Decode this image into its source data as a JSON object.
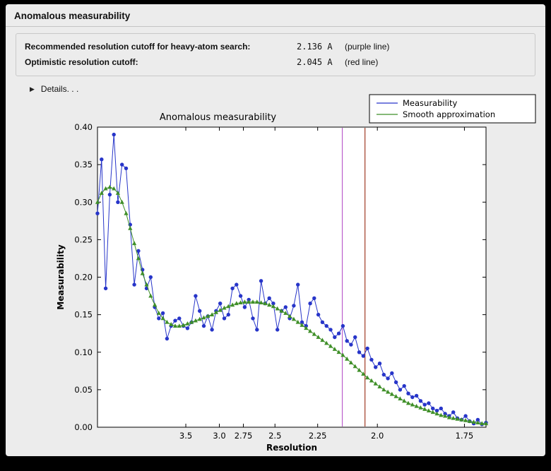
{
  "window": {
    "title": "Anomalous measurability"
  },
  "info": {
    "rows": [
      {
        "label": "Recommended resolution cutoff for heavy-atom search:",
        "value": "2.136 A",
        "note": "(purple line)"
      },
      {
        "label": "Optimistic resolution cutoff:",
        "value": "2.045 A",
        "note": "(red line)"
      }
    ]
  },
  "details": {
    "label": "Details. . .",
    "icon": "triangle-right"
  },
  "chart_data": {
    "type": "line",
    "title": "Anomalous measurability",
    "xlabel": "Resolution",
    "ylabel": "Measurability",
    "grid": false,
    "plot_bg": "#ffffff",
    "x_axis": {
      "scale": "reciprocal (1/d^2), resolution in Angstrom decreasing to the right",
      "range_s": [
        0.004,
        0.3455
      ],
      "ticks": [
        {
          "label": "3.5",
          "resolution": 3.5
        },
        {
          "label": "3.0",
          "resolution": 3.0
        },
        {
          "label": "2.75",
          "resolution": 2.75
        },
        {
          "label": "2.5",
          "resolution": 2.5
        },
        {
          "label": "2.25",
          "resolution": 2.25
        },
        {
          "label": "2.0",
          "resolution": 2.0
        },
        {
          "label": "1.75",
          "resolution": 1.75
        }
      ]
    },
    "y_axis": {
      "range": [
        0.0,
        0.4
      ],
      "ticks": [
        {
          "label": "0.00",
          "value": 0.0
        },
        {
          "label": "0.05",
          "value": 0.05
        },
        {
          "label": "0.10",
          "value": 0.1
        },
        {
          "label": "0.15",
          "value": 0.15
        },
        {
          "label": "0.20",
          "value": 0.2
        },
        {
          "label": "0.25",
          "value": 0.25
        },
        {
          "label": "0.30",
          "value": 0.3
        },
        {
          "label": "0.35",
          "value": 0.35
        },
        {
          "label": "0.40",
          "value": 0.4
        }
      ]
    },
    "vlines": [
      {
        "resolution": 2.136,
        "color": "#bb5ecc",
        "label": "purple line"
      },
      {
        "resolution": 2.045,
        "color": "#a03b25",
        "label": "red line"
      }
    ],
    "legend": {
      "position": "top-right"
    },
    "series": [
      {
        "name": "Measurability",
        "color": "#2735c9",
        "marker": "circle",
        "values": [
          0.285,
          0.357,
          0.185,
          0.31,
          0.39,
          0.3,
          0.35,
          0.345,
          0.27,
          0.19,
          0.235,
          0.21,
          0.185,
          0.2,
          0.16,
          0.145,
          0.152,
          0.118,
          0.135,
          0.142,
          0.145,
          0.135,
          0.132,
          0.14,
          0.175,
          0.155,
          0.135,
          0.148,
          0.13,
          0.155,
          0.165,
          0.145,
          0.15,
          0.185,
          0.19,
          0.175,
          0.16,
          0.17,
          0.145,
          0.13,
          0.195,
          0.165,
          0.172,
          0.165,
          0.13,
          0.155,
          0.16,
          0.145,
          0.162,
          0.19,
          0.14,
          0.135,
          0.165,
          0.172,
          0.15,
          0.14,
          0.135,
          0.13,
          0.12,
          0.125,
          0.135,
          0.115,
          0.11,
          0.12,
          0.1,
          0.095,
          0.105,
          0.09,
          0.08,
          0.085,
          0.07,
          0.065,
          0.072,
          0.06,
          0.05,
          0.055,
          0.045,
          0.04,
          0.042,
          0.035,
          0.03,
          0.032,
          0.025,
          0.022,
          0.025,
          0.018,
          0.015,
          0.02,
          0.012,
          0.01,
          0.015,
          0.008,
          0.005,
          0.01,
          0.004,
          0.006
        ]
      },
      {
        "name": "Smooth approximation",
        "color": "#3f8f28",
        "marker": "triangle",
        "values": [
          0.3,
          0.312,
          0.318,
          0.32,
          0.318,
          0.312,
          0.3,
          0.285,
          0.265,
          0.245,
          0.225,
          0.205,
          0.19,
          0.175,
          0.163,
          0.152,
          0.145,
          0.14,
          0.137,
          0.135,
          0.135,
          0.136,
          0.138,
          0.14,
          0.142,
          0.144,
          0.146,
          0.148,
          0.15,
          0.153,
          0.156,
          0.159,
          0.161,
          0.163,
          0.165,
          0.166,
          0.167,
          0.167,
          0.167,
          0.167,
          0.166,
          0.165,
          0.163,
          0.161,
          0.158,
          0.155,
          0.152,
          0.148,
          0.144,
          0.14,
          0.136,
          0.132,
          0.128,
          0.124,
          0.12,
          0.116,
          0.112,
          0.108,
          0.104,
          0.1,
          0.096,
          0.091,
          0.086,
          0.081,
          0.076,
          0.071,
          0.066,
          0.062,
          0.058,
          0.054,
          0.05,
          0.047,
          0.044,
          0.041,
          0.038,
          0.035,
          0.032,
          0.03,
          0.028,
          0.026,
          0.024,
          0.022,
          0.02,
          0.018,
          0.016,
          0.015,
          0.013,
          0.012,
          0.011,
          0.01,
          0.009,
          0.008,
          0.007,
          0.006,
          0.005,
          0.005
        ]
      }
    ]
  }
}
